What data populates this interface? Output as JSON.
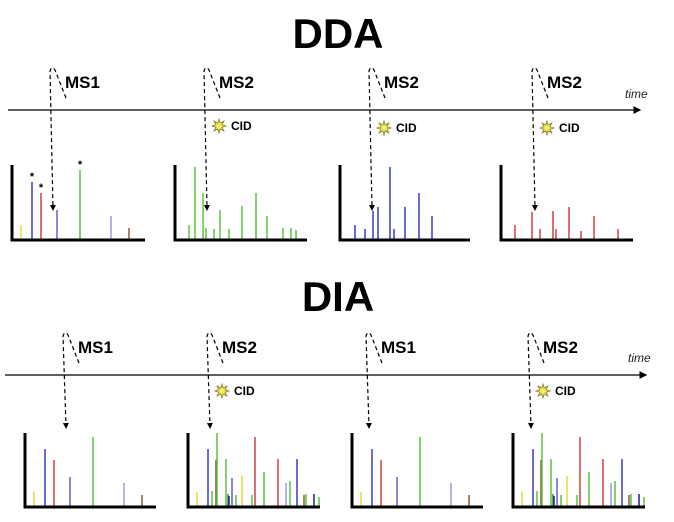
{
  "dda": {
    "title": "DDA",
    "time_label": "time",
    "scans": [
      {
        "label": "MS1",
        "cid": ""
      },
      {
        "label": "MS2",
        "cid": "CID"
      },
      {
        "label": "MS2",
        "cid": "CID"
      },
      {
        "label": "MS2",
        "cid": "CID"
      }
    ],
    "selected_marker": "*"
  },
  "dia": {
    "title": "DIA",
    "time_label": "time",
    "scans": [
      {
        "label": "MS1",
        "cid": ""
      },
      {
        "label": "MS2",
        "cid": "CID"
      },
      {
        "label": "MS1",
        "cid": ""
      },
      {
        "label": "MS2",
        "cid": "CID"
      }
    ]
  },
  "icons": {
    "cid": "burst-star-icon"
  },
  "colors": {
    "blue": "#3a3ac8",
    "red": "#d04040",
    "green": "#5cc040",
    "purple": "#6a5ac8",
    "lightblue": "#9a9ae6",
    "yellow": "#e6d83a",
    "brown": "#8a5a3a",
    "navy": "#20208a",
    "darkgreen": "#3a8a3a",
    "star": "#f0f060"
  }
}
